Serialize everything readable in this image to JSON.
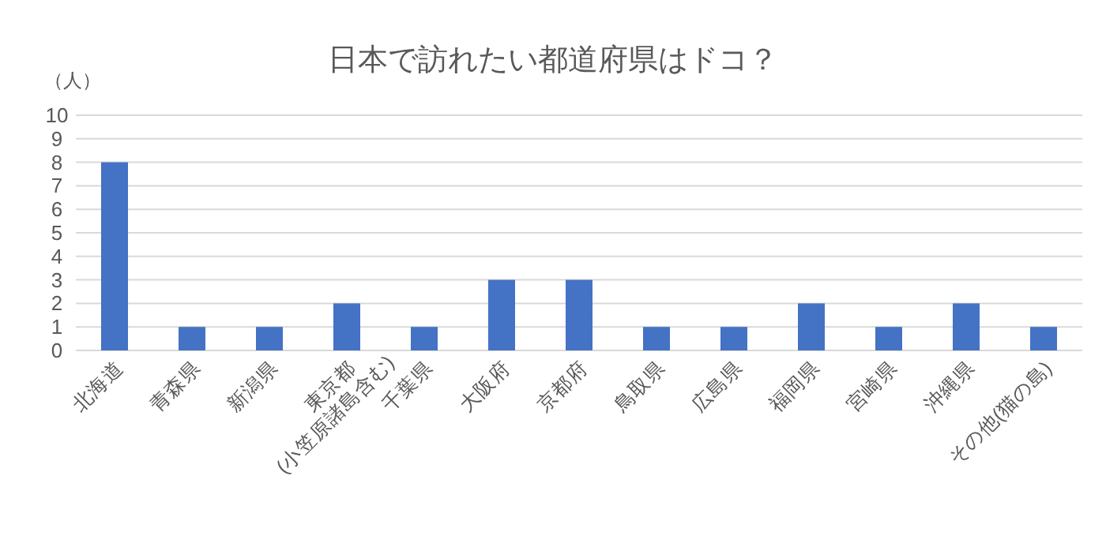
{
  "chart_data": {
    "type": "bar",
    "title": "日本で訪れたい都道府県はドコ？",
    "ylabel": "（人）",
    "categories": [
      "北海道",
      "青森県",
      "新潟県",
      "東京都\n(小笠原諸島含む)",
      "千葉県",
      "大阪府",
      "京都府",
      "鳥取県",
      "広島県",
      "福岡県",
      "宮崎県",
      "沖縄県",
      "その他(猫の島)"
    ],
    "values": [
      8,
      1,
      1,
      2,
      1,
      3,
      3,
      1,
      1,
      2,
      1,
      2,
      1
    ],
    "color": "#4472c4",
    "ylim": [
      0,
      10
    ],
    "yticks": [
      0,
      1,
      2,
      3,
      4,
      5,
      6,
      7,
      8,
      9,
      10
    ],
    "grid": "y"
  }
}
